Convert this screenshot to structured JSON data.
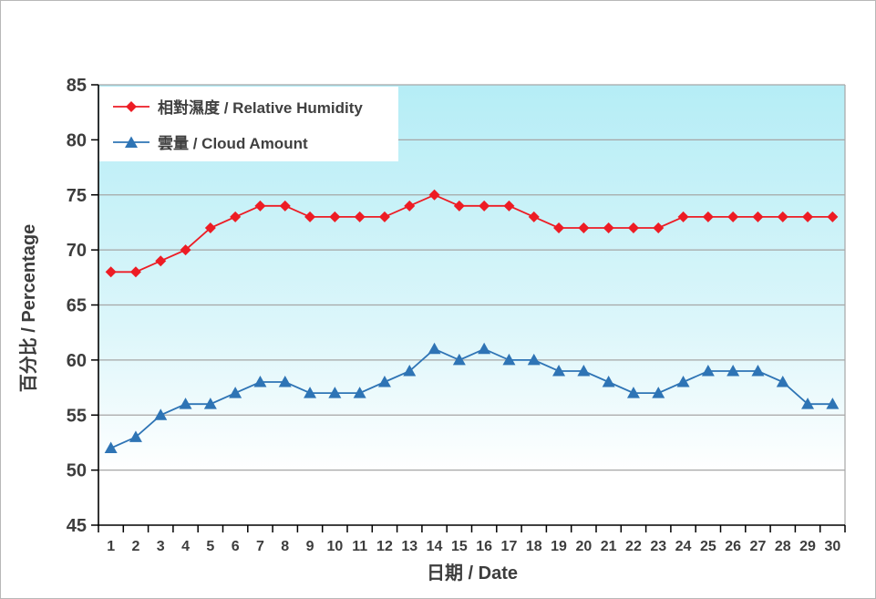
{
  "chart_data": {
    "type": "line",
    "x": [
      1,
      2,
      3,
      4,
      5,
      6,
      7,
      8,
      9,
      10,
      11,
      12,
      13,
      14,
      15,
      16,
      17,
      18,
      19,
      20,
      21,
      22,
      23,
      24,
      25,
      26,
      27,
      28,
      29,
      30
    ],
    "series": [
      {
        "name": "相對濕度 / Relative Humidity",
        "marker": "diamond",
        "color": "#ed1c24",
        "values": [
          68,
          68,
          69,
          70,
          72,
          73,
          74,
          74,
          73,
          73,
          73,
          73,
          74,
          75,
          74,
          74,
          74,
          73,
          72,
          72,
          72,
          72,
          72,
          73,
          73,
          73,
          73,
          73,
          73,
          73
        ]
      },
      {
        "name": "雲量 / Cloud Amount",
        "marker": "triangle",
        "color": "#2e74b5",
        "values": [
          52,
          53,
          55,
          56,
          56,
          57,
          58,
          58,
          57,
          57,
          57,
          58,
          59,
          61,
          60,
          61,
          60,
          60,
          59,
          59,
          58,
          57,
          57,
          58,
          59,
          59,
          59,
          58,
          56,
          56
        ]
      }
    ],
    "xlabel": "日期 / Date",
    "ylabel": "百分比 / Percentage",
    "ylim": [
      45,
      85
    ],
    "ytick_step": 5,
    "grid": true,
    "legend_position": "top-left",
    "style": {
      "plot_bg_top": "#b5edf6",
      "plot_bg_bottom": "#ffffff",
      "grid_color": "#a6a6a6",
      "axis_color": "#000000",
      "text_color": "#3d3d3d"
    }
  }
}
